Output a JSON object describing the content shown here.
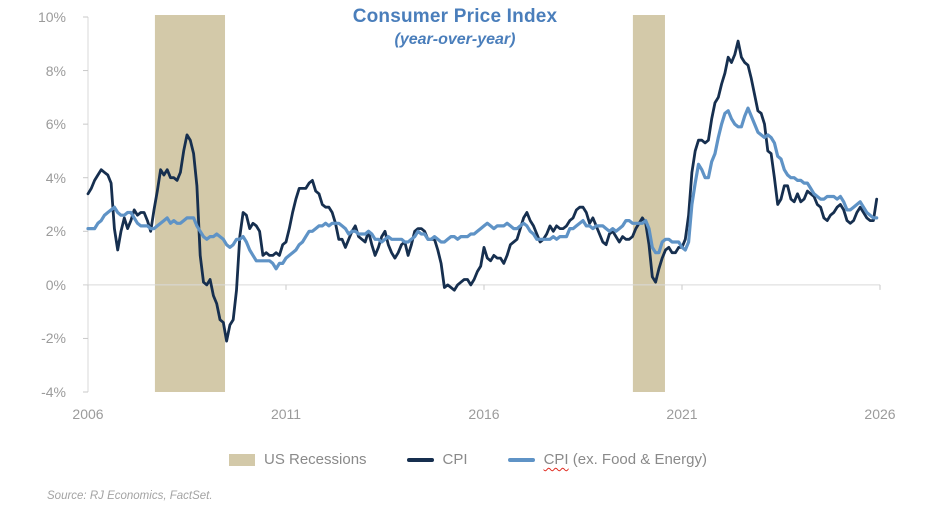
{
  "title": {
    "text": "Consumer Price Index",
    "subtitle": "(year-over-year)",
    "color": "#4A7EBB"
  },
  "source_note": "Source: RJ Economics, FactSet.",
  "legend": [
    {
      "type": "box",
      "label": "US Recessions",
      "color": "#D3C9A9"
    },
    {
      "type": "line",
      "label": "CPI",
      "color": "#162F4F"
    },
    {
      "type": "line",
      "label_main": "CPI",
      "label_rest": " (ex. Food & Energy)",
      "color": "#5F93C6",
      "spellcheck_underline": true
    }
  ],
  "chart_data": {
    "type": "line",
    "title": "Consumer Price Index",
    "subtitle": "(year-over-year)",
    "x_start_year": 2006,
    "x_frequency": "monthly",
    "xlim": [
      2006,
      2026
    ],
    "ylim": [
      -4,
      10
    ],
    "yticks": [
      10,
      8,
      6,
      4,
      2,
      0,
      -2,
      -4
    ],
    "ytick_labels": [
      "10%",
      "8%",
      "6%",
      "4%",
      "2%",
      "0%",
      "-2%",
      "-4%"
    ],
    "xticks": [
      2006,
      2011,
      2016,
      2021,
      2026
    ],
    "xtick_labels": [
      "2006",
      "2011",
      "2016",
      "2021",
      "2026"
    ],
    "grid": "zero-line-only",
    "legend_position": "bottom",
    "axis_color": "#D9D9D9",
    "recession_color": "#D3C9A9",
    "recessions": [
      {
        "start_year": 2007.69,
        "end_year": 2009.46
      },
      {
        "start_year": 2019.76,
        "end_year": 2020.57
      }
    ],
    "series": [
      {
        "name": "CPI",
        "color": "#162F4F",
        "width": 2.8,
        "values": [
          3.4,
          3.6,
          3.9,
          4.1,
          4.3,
          4.2,
          4.1,
          3.8,
          2.1,
          1.3,
          2.0,
          2.5,
          2.1,
          2.4,
          2.8,
          2.6,
          2.7,
          2.7,
          2.4,
          2.0,
          2.8,
          3.5,
          4.3,
          4.1,
          4.3,
          4.0,
          4.0,
          3.9,
          4.2,
          5.0,
          5.6,
          5.4,
          4.9,
          3.7,
          1.1,
          0.1,
          0.0,
          0.2,
          -0.4,
          -0.7,
          -1.3,
          -1.4,
          -2.1,
          -1.5,
          -1.3,
          -0.2,
          1.8,
          2.7,
          2.6,
          2.1,
          2.3,
          2.2,
          2.0,
          1.1,
          1.2,
          1.1,
          1.1,
          1.2,
          1.1,
          1.5,
          1.6,
          2.1,
          2.7,
          3.2,
          3.6,
          3.6,
          3.6,
          3.8,
          3.9,
          3.5,
          3.4,
          3.0,
          2.9,
          2.9,
          2.7,
          2.3,
          1.7,
          1.7,
          1.4,
          1.7,
          2.0,
          2.2,
          1.8,
          1.7,
          1.6,
          2.0,
          1.5,
          1.1,
          1.4,
          1.8,
          2.0,
          1.5,
          1.2,
          1.0,
          1.2,
          1.5,
          1.6,
          1.1,
          1.5,
          2.0,
          2.1,
          2.1,
          2.0,
          1.7,
          1.7,
          1.7,
          1.3,
          0.8,
          -0.1,
          0.0,
          -0.1,
          -0.2,
          0.0,
          0.1,
          0.2,
          0.2,
          0.0,
          0.2,
          0.5,
          0.7,
          1.4,
          1.0,
          0.9,
          1.1,
          1.0,
          1.0,
          0.8,
          1.1,
          1.5,
          1.6,
          1.7,
          2.1,
          2.5,
          2.7,
          2.4,
          2.2,
          1.9,
          1.6,
          1.7,
          1.9,
          2.2,
          2.0,
          2.2,
          2.1,
          2.1,
          2.2,
          2.4,
          2.5,
          2.8,
          2.9,
          2.9,
          2.7,
          2.3,
          2.5,
          2.2,
          1.9,
          1.6,
          1.5,
          1.9,
          2.0,
          1.8,
          1.6,
          1.8,
          1.7,
          1.7,
          1.8,
          2.1,
          2.3,
          2.5,
          2.3,
          1.5,
          0.3,
          0.1,
          0.6,
          1.0,
          1.3,
          1.4,
          1.2,
          1.2,
          1.4,
          1.4,
          1.7,
          2.6,
          4.2,
          5.0,
          5.4,
          5.4,
          5.3,
          5.4,
          6.2,
          6.8,
          7.0,
          7.5,
          7.9,
          8.5,
          8.3,
          8.6,
          9.1,
          8.5,
          8.3,
          8.2,
          7.7,
          7.1,
          6.5,
          6.4,
          6.0,
          5.0,
          4.9,
          4.0,
          3.0,
          3.2,
          3.7,
          3.7,
          3.2,
          3.1,
          3.4,
          3.1,
          3.2,
          3.5,
          3.4,
          3.3,
          3.0,
          2.9,
          2.5,
          2.4,
          2.6,
          2.7,
          2.9,
          3.0,
          2.8,
          2.4,
          2.3,
          2.4,
          2.7,
          2.9,
          2.7,
          2.5,
          2.4,
          2.4,
          3.2
        ]
      },
      {
        "name": "CPI (ex. Food & Energy)",
        "color": "#5F93C6",
        "width": 3.2,
        "values": [
          2.1,
          2.1,
          2.1,
          2.3,
          2.4,
          2.6,
          2.7,
          2.8,
          2.9,
          2.7,
          2.6,
          2.6,
          2.7,
          2.7,
          2.5,
          2.3,
          2.2,
          2.2,
          2.2,
          2.1,
          2.1,
          2.2,
          2.3,
          2.4,
          2.5,
          2.3,
          2.4,
          2.3,
          2.3,
          2.4,
          2.5,
          2.5,
          2.5,
          2.2,
          2.0,
          1.8,
          1.7,
          1.8,
          1.8,
          1.9,
          1.8,
          1.7,
          1.5,
          1.4,
          1.5,
          1.7,
          1.7,
          1.8,
          1.6,
          1.3,
          1.1,
          0.9,
          0.9,
          0.9,
          0.9,
          0.9,
          0.8,
          0.6,
          0.8,
          0.8,
          1.0,
          1.1,
          1.2,
          1.3,
          1.5,
          1.6,
          1.8,
          2.0,
          2.0,
          2.1,
          2.2,
          2.2,
          2.3,
          2.2,
          2.3,
          2.3,
          2.3,
          2.2,
          2.1,
          1.9,
          2.0,
          2.0,
          1.9,
          1.9,
          1.9,
          2.0,
          1.9,
          1.7,
          1.7,
          1.6,
          1.7,
          1.8,
          1.7,
          1.7,
          1.7,
          1.7,
          1.6,
          1.6,
          1.7,
          1.8,
          2.0,
          1.9,
          1.9,
          1.7,
          1.7,
          1.8,
          1.7,
          1.6,
          1.6,
          1.7,
          1.8,
          1.8,
          1.7,
          1.8,
          1.8,
          1.8,
          1.9,
          1.9,
          2.0,
          2.1,
          2.2,
          2.3,
          2.2,
          2.1,
          2.2,
          2.2,
          2.2,
          2.3,
          2.2,
          2.1,
          2.1,
          2.2,
          2.3,
          2.2,
          2.0,
          1.9,
          1.7,
          1.7,
          1.7,
          1.7,
          1.7,
          1.8,
          1.7,
          1.8,
          1.8,
          1.8,
          2.1,
          2.1,
          2.2,
          2.3,
          2.4,
          2.2,
          2.2,
          2.1,
          2.2,
          2.2,
          2.2,
          2.1,
          2.0,
          2.1,
          2.0,
          2.1,
          2.2,
          2.4,
          2.4,
          2.3,
          2.3,
          2.3,
          2.3,
          2.4,
          2.1,
          1.4,
          1.2,
          1.2,
          1.6,
          1.7,
          1.7,
          1.6,
          1.6,
          1.6,
          1.4,
          1.3,
          1.6,
          3.0,
          3.8,
          4.5,
          4.3,
          4.0,
          4.0,
          4.6,
          4.9,
          5.5,
          6.0,
          6.4,
          6.5,
          6.2,
          6.0,
          5.9,
          5.9,
          6.3,
          6.6,
          6.3,
          6.0,
          5.7,
          5.6,
          5.5,
          5.6,
          5.5,
          5.3,
          4.8,
          4.7,
          4.3,
          4.1,
          4.0,
          4.0,
          3.9,
          3.9,
          3.8,
          3.8,
          3.6,
          3.4,
          3.3,
          3.2,
          3.2,
          3.3,
          3.3,
          3.3,
          3.2,
          3.3,
          3.1,
          2.8,
          2.8,
          2.9,
          3.0,
          3.1,
          2.9,
          2.7,
          2.6,
          2.5,
          2.5
        ]
      }
    ]
  }
}
